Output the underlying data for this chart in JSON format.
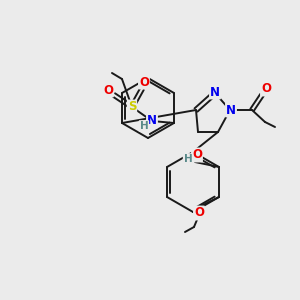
{
  "background_color": "#ebebeb",
  "bond_color": "#1a1a1a",
  "atom_colors": {
    "N": "#0000ee",
    "O": "#ee0000",
    "S": "#cccc00",
    "H": "#5a8a8a",
    "C": "#1a1a1a"
  },
  "figsize": [
    3.0,
    3.0
  ],
  "dpi": 100
}
